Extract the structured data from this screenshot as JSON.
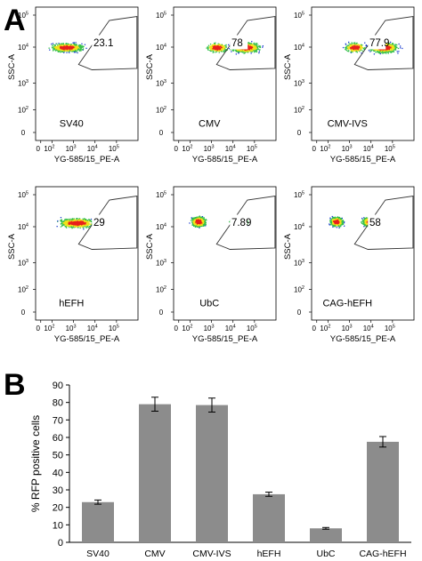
{
  "panel_a": {
    "label": "A",
    "plots": [
      {
        "name": "SV40",
        "gate_value": "23.1",
        "gate_pct": 23.1
      },
      {
        "name": "CMV",
        "gate_value": "78",
        "gate_pct": 78
      },
      {
        "name": "CMV-IVS",
        "gate_value": "77.9",
        "gate_pct": 77.9
      },
      {
        "name": "hEFH",
        "gate_value": "29",
        "gate_pct": 29
      },
      {
        "name": "UbC",
        "gate_value": "7.89",
        "gate_pct": 7.89
      },
      {
        "name": "CAG-hEFH",
        "gate_value": "58",
        "gate_pct": 58
      }
    ],
    "xlabel": "YG-585/15_PE-A",
    "ylabel": "SSC-A",
    "x_ticks": [
      "0",
      "10",
      "10",
      "10",
      "10",
      "10"
    ],
    "x_tick_exps": [
      "",
      "2",
      "3",
      "4",
      "5",
      ""
    ],
    "y_ticks": [
      "0",
      "10",
      "10",
      "10",
      "10"
    ],
    "y_tick_exps": [
      "",
      "2",
      "3",
      "4",
      "5"
    ],
    "colors": {
      "dense": "#e8201c",
      "mid": "#f2e21a",
      "green": "#35c04a",
      "sparse": "#1e3fd0",
      "gate": "#333333"
    }
  },
  "panel_b": {
    "label": "B"
  },
  "chart_data": {
    "type": "bar",
    "categories": [
      "SV40",
      "CMV",
      "CMV-IVS",
      "hEFH",
      "UbC",
      "CAG-hEFH"
    ],
    "values": [
      23,
      79,
      78.5,
      27.5,
      8,
      57.5
    ],
    "errors": [
      1.2,
      4,
      4,
      1.2,
      0.5,
      3
    ],
    "ylabel": "% RFP positive cells",
    "xlabel": "",
    "ylim": [
      0,
      90
    ],
    "yticks": [
      0,
      10,
      20,
      30,
      40,
      50,
      60,
      70,
      80,
      90
    ],
    "bar_color": "#8c8c8c",
    "grid": false
  }
}
